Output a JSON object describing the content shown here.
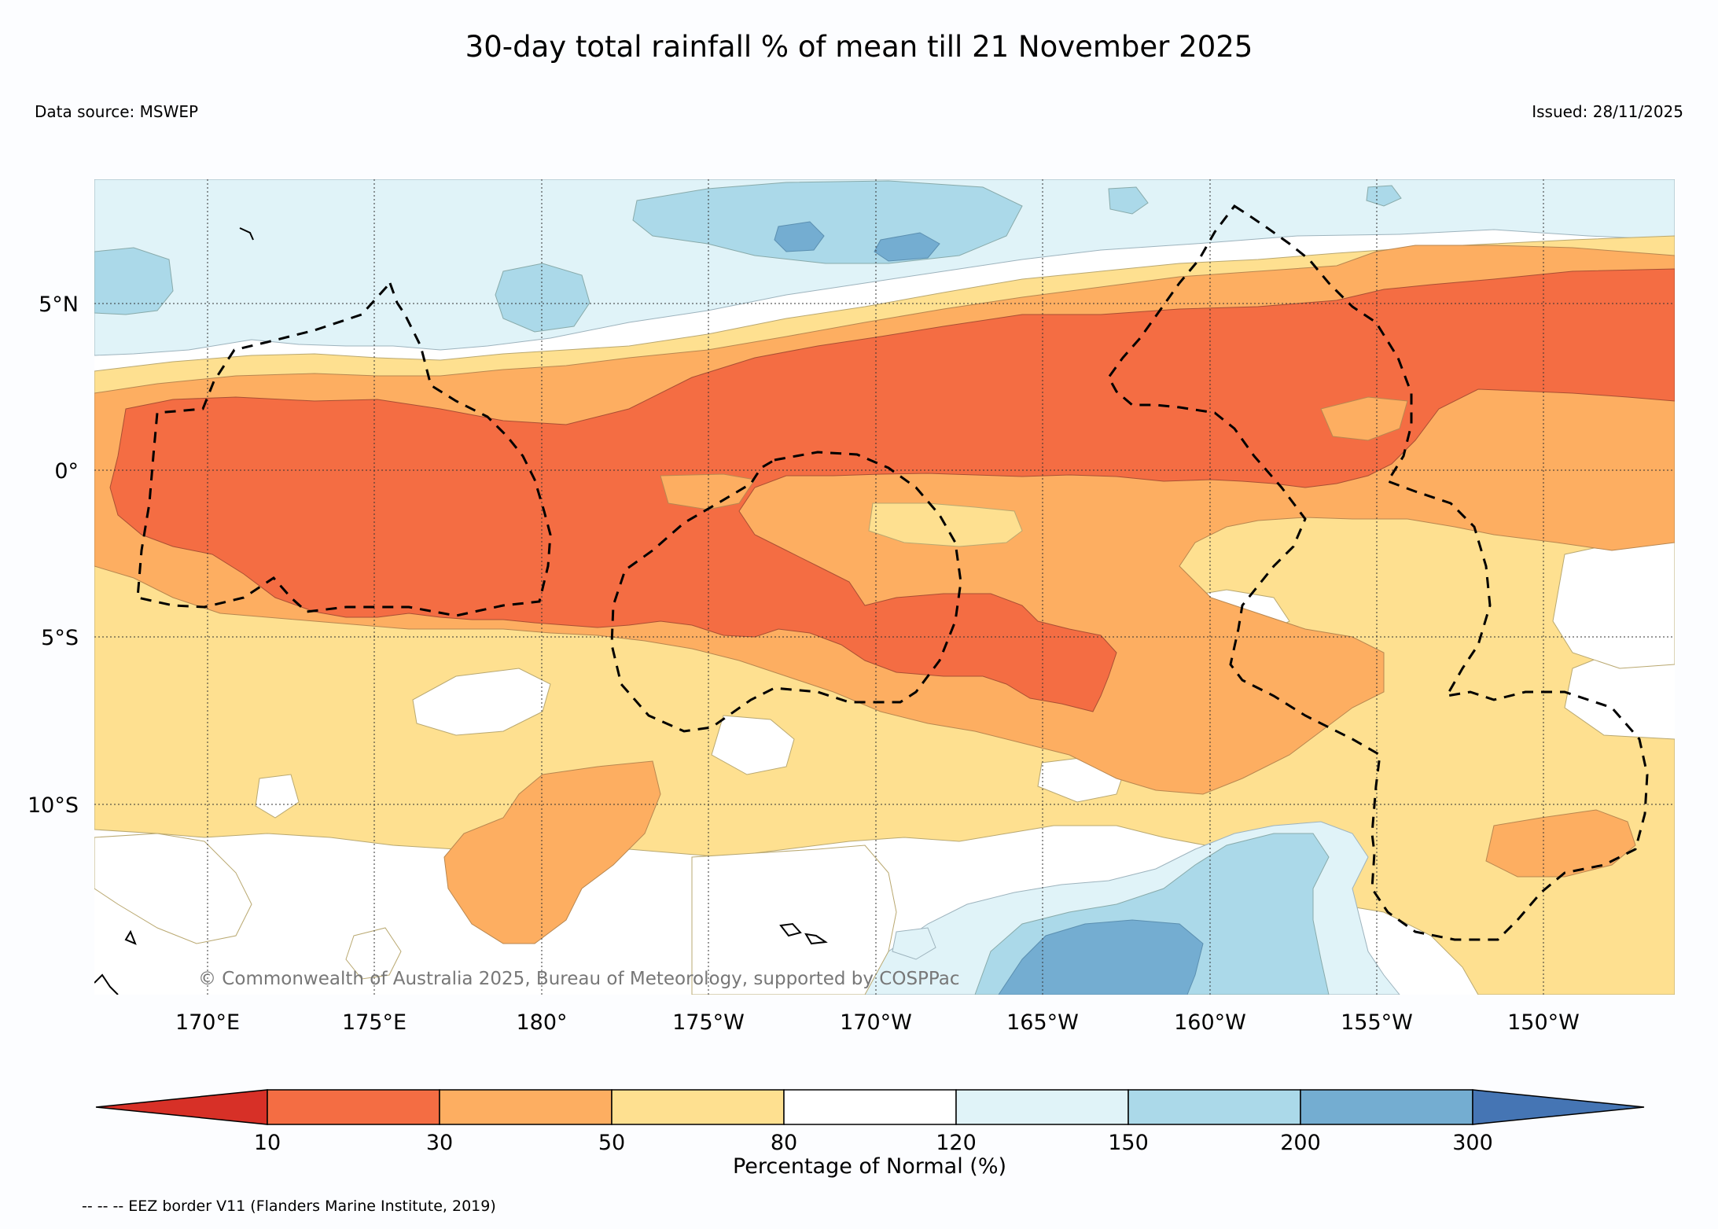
{
  "title": "30-day total rainfall % of mean till 21 November 2025",
  "data_source": "Data source: MSWEP",
  "issued": "Issued: 28/11/2025",
  "copyright": "© Commonwealth of Australia 2025, Bureau of Meteorology, supported by COSPPac",
  "footnote": "-- -- -- EEZ border V11 (Flanders Marine Institute, 2019)",
  "map": {
    "lon_labels": [
      "170°E",
      "175°E",
      "180°",
      "175°W",
      "170°W",
      "165°W",
      "160°W",
      "155°W",
      "150°W"
    ],
    "lat_labels": [
      "5°N",
      "0°",
      "5°S",
      "10°S"
    ],
    "extent": {
      "lon_min": 166.6,
      "lon_max": 212.8,
      "lat_min": -15.6,
      "lat_max": 8.7
    }
  },
  "legend": {
    "label": "Percentage of Normal (%)",
    "ticks": [
      "10",
      "30",
      "50",
      "80",
      "120",
      "150",
      "200",
      "300"
    ],
    "colors": [
      "#d73027",
      "#f46d43",
      "#fdae61",
      "#fee090",
      "#ffffff",
      "#e0f3f8",
      "#abd9e9",
      "#74add1",
      "#4575b4"
    ]
  },
  "layers": {
    "eez_border": "dashed black line",
    "land": "black outline"
  }
}
